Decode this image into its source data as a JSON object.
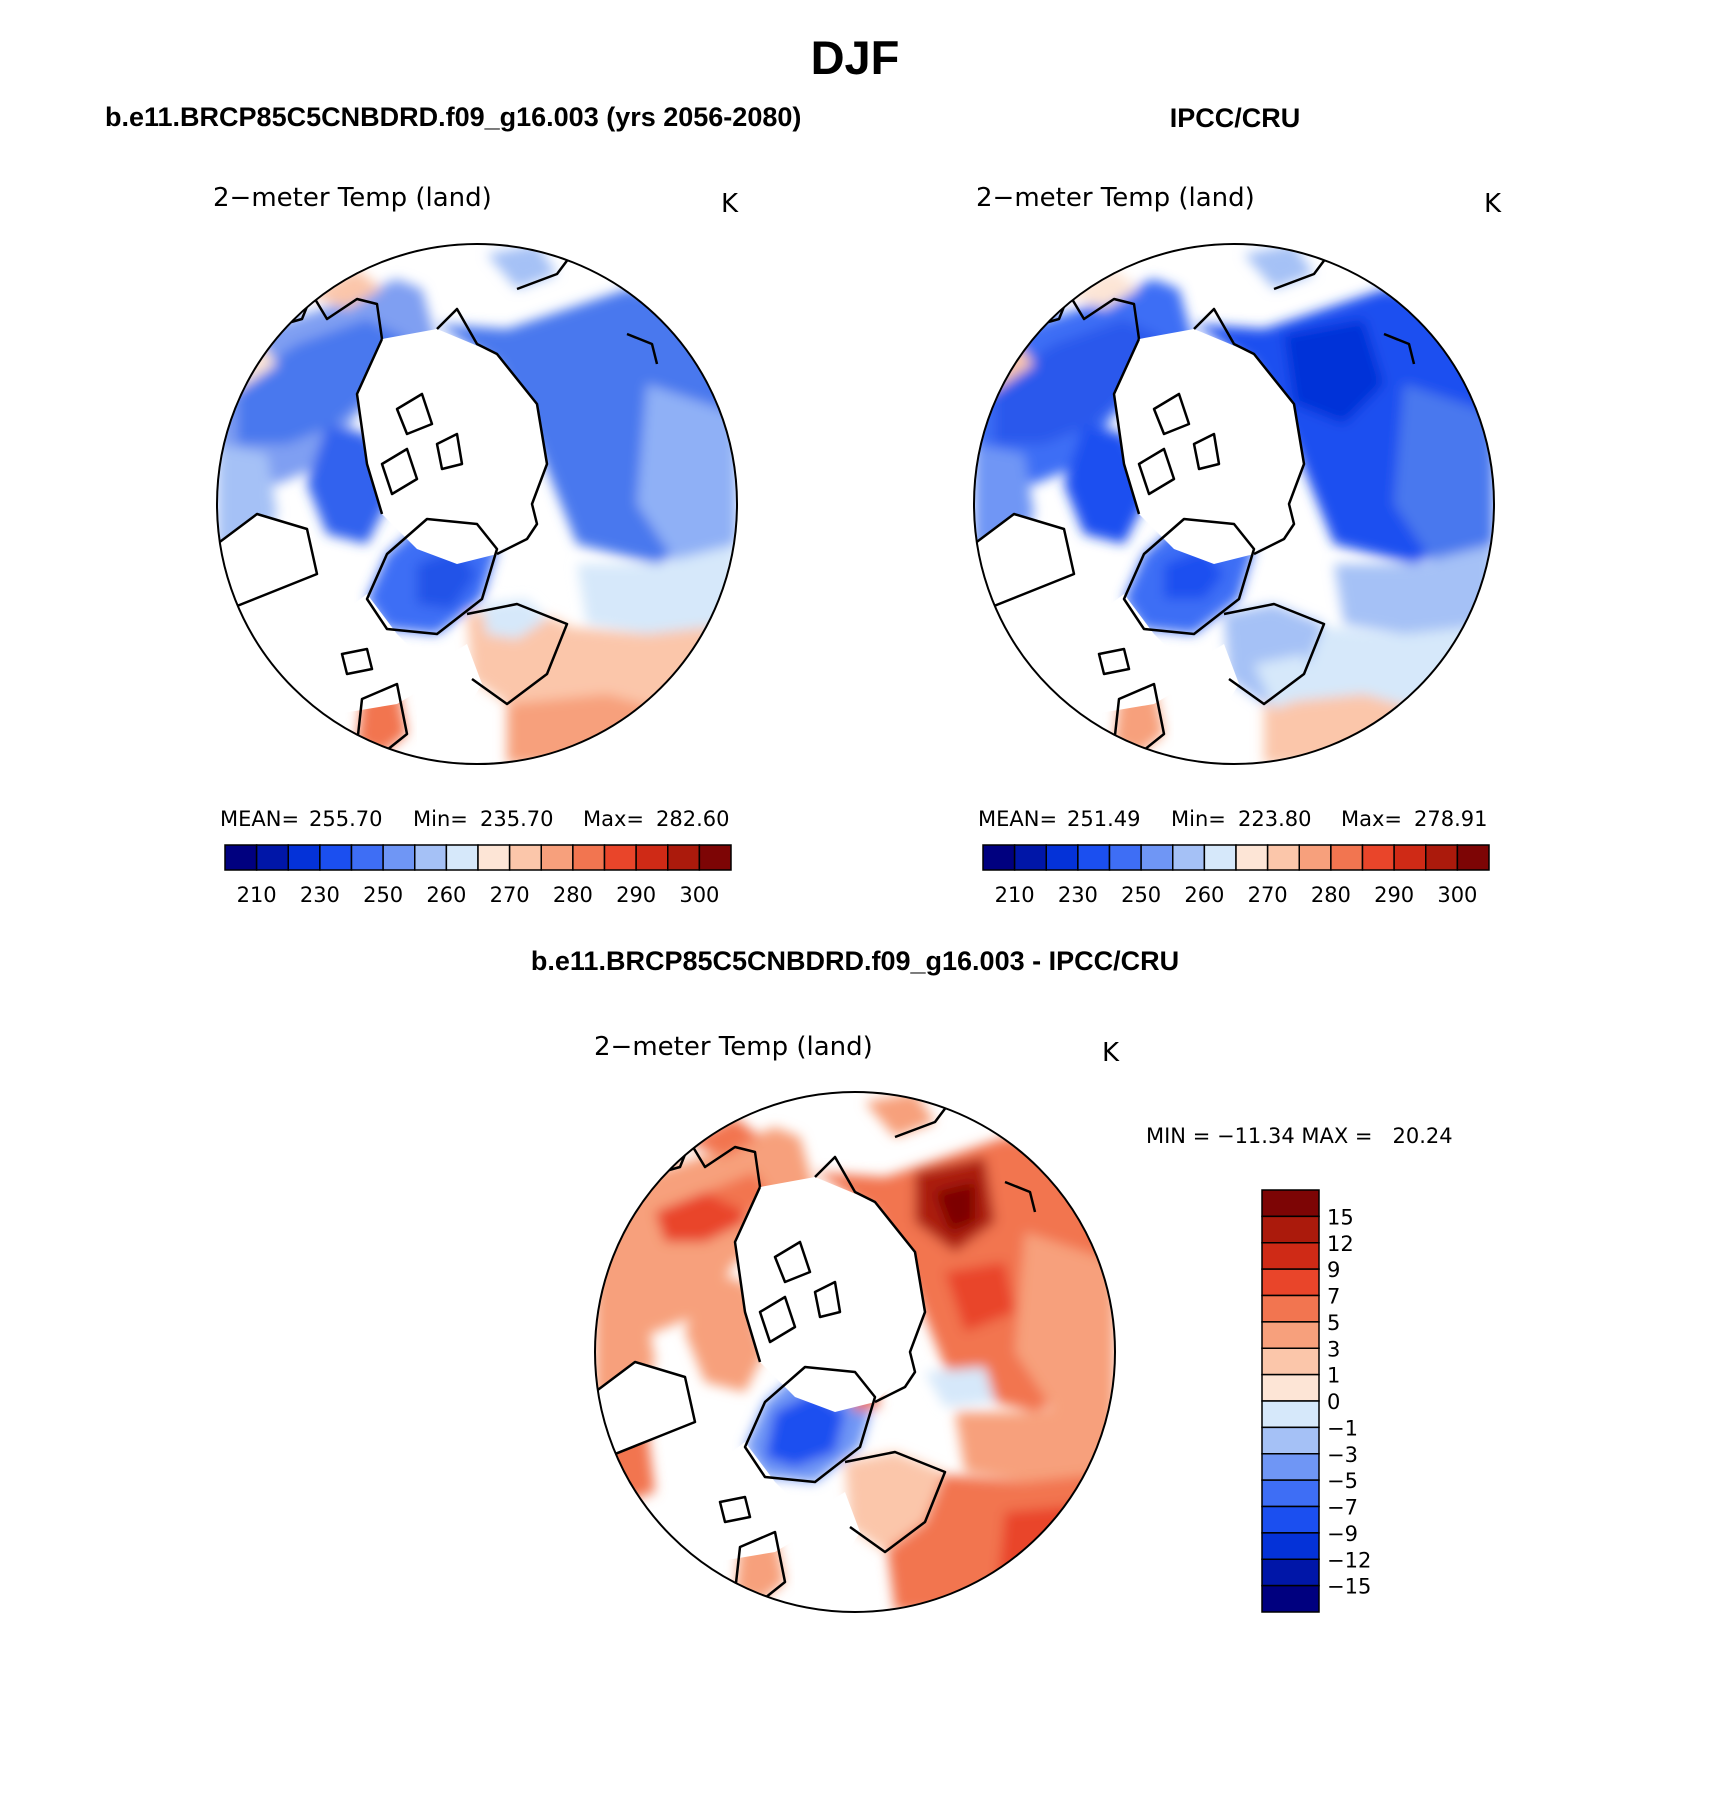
{
  "figure": {
    "title": "DJF",
    "left_header": "b.e11.BRCP85C5CNBDRD.f09_g16.003 (yrs 2056-2080)",
    "right_header": "IPCC/CRU",
    "bottom_header": "b.e11.BRCP85C5CNBDRD.f09_g16.003 - IPCC/CRU"
  },
  "panels": [
    {
      "id": "model",
      "variable": "2−meter Temp (land)",
      "units": "K",
      "stats": {
        "mean_label": "MEAN=",
        "mean": "255.70",
        "min_label": "Min=",
        "min": "235.70",
        "max_label": "Max=",
        "max": "282.60"
      }
    },
    {
      "id": "obs",
      "variable": "2−meter Temp (land)",
      "units": "K",
      "stats": {
        "mean_label": "MEAN=",
        "mean": "251.49",
        "min_label": "Min=",
        "min": "223.80",
        "max_label": "Max=",
        "max": "278.91"
      }
    },
    {
      "id": "diff",
      "variable": "2−meter Temp (land)",
      "units": "K",
      "stats_text": "MIN = −11.34 MAX =   20.24"
    }
  ],
  "colorbar_abs": {
    "colors": [
      "#00007f",
      "#0016a8",
      "#0432d8",
      "#1b4ff0",
      "#3e6ef5",
      "#6f96f5",
      "#a5c1f6",
      "#d6e8fa",
      "#fde5d6",
      "#fbc6aa",
      "#f7a07c",
      "#f27550",
      "#e9452a",
      "#cf2a16",
      "#ab1a0c",
      "#7d0505"
    ],
    "labels": [
      "210",
      "230",
      "250",
      "260",
      "270",
      "280",
      "290",
      "300"
    ]
  },
  "colorbar_diff": {
    "colors": [
      "#00007f",
      "#0016a8",
      "#0432d8",
      "#1b4ff0",
      "#3e6ef5",
      "#6f96f5",
      "#a5c1f6",
      "#d6e8fa",
      "#fde5d6",
      "#fbc6aa",
      "#f7a07c",
      "#f27550",
      "#e9452a",
      "#cf2a16",
      "#ab1a0c",
      "#7d0505"
    ],
    "labels": [
      "15",
      "12",
      "9",
      "7",
      "5",
      "3",
      "1",
      "0",
      "−1",
      "−3",
      "−5",
      "−7",
      "−9",
      "−12",
      "−15"
    ]
  }
}
